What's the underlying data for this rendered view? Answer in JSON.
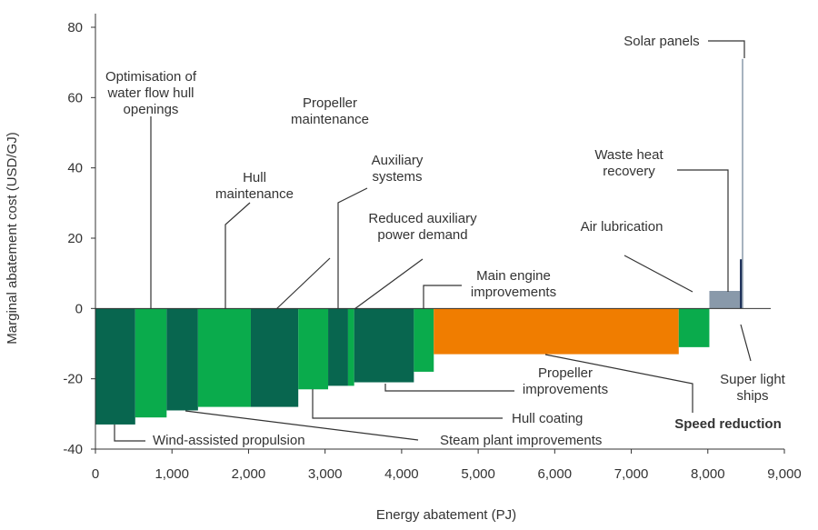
{
  "chart_data": {
    "type": "bar",
    "subtype": "marginal-abatement-cost-curve",
    "title": "",
    "xlabel": "Energy abatement (PJ)",
    "ylabel": "Marginal abatement cost (USD/GJ)",
    "xlim": [
      0,
      9000
    ],
    "ylim": [
      -40,
      85
    ],
    "x_ticks": [
      "0",
      "1,000",
      "2,000",
      "3,000",
      "4,000",
      "5,000",
      "6,000",
      "7,000",
      "8,000",
      "9,000"
    ],
    "y_ticks": [
      "-40",
      "-20",
      "0",
      "20",
      "40",
      "60",
      "80"
    ],
    "grid": false,
    "colors": {
      "dark_green": "#08664f",
      "light_green": "#0aab4c",
      "orange": "#f07d00",
      "grey": "#8999aa",
      "navy": "#0b1f4b",
      "axis": "#333333",
      "highlight_leader": "#f07d00"
    },
    "measures": [
      {
        "id": "wind",
        "label": "Wind-assisted propulsion",
        "x0": 0,
        "x1": 520,
        "value": -33,
        "color": "dark_green",
        "text_lines": [
          "Wind-assisted propulsion"
        ]
      },
      {
        "id": "hullflow",
        "label": "Optimisation of water flow hull openings",
        "x0": 520,
        "x1": 930,
        "value": -31,
        "color": "light_green",
        "text_lines": [
          "Optimisation of",
          "water flow hull",
          "openings"
        ]
      },
      {
        "id": "steam",
        "label": "Steam plant improvements",
        "x0": 930,
        "x1": 1340,
        "value": -29,
        "color": "dark_green",
        "text_lines": [
          "Steam plant improvements"
        ]
      },
      {
        "id": "hullmaint",
        "label": "Hull maintenance",
        "x0": 1340,
        "x1": 2030,
        "value": -28,
        "color": "light_green",
        "text_lines": [
          "Hull",
          "maintenance"
        ]
      },
      {
        "id": "propmaint",
        "label": "Propeller maintenance",
        "x0": 2030,
        "x1": 2650,
        "value": -28,
        "color": "dark_green",
        "text_lines": [
          "Propeller",
          "maintenance"
        ]
      },
      {
        "id": "hullcoat",
        "label": "Hull coating",
        "x0": 2650,
        "x1": 3040,
        "value": -23,
        "color": "light_green",
        "text_lines": [
          "Hull coating"
        ]
      },
      {
        "id": "aux",
        "label": "Auxiliary systems",
        "x0": 3040,
        "x1": 3300,
        "value": -22,
        "color": "dark_green",
        "text_lines": [
          "Auxiliary",
          "systems"
        ]
      },
      {
        "id": "redaux",
        "label": "Reduced auxiliary power demand",
        "x0": 3300,
        "x1": 3380,
        "value": -22,
        "color": "light_green",
        "text_lines": [
          "Reduced auxiliary",
          "power demand"
        ]
      },
      {
        "id": "propimp",
        "label": "Propeller improvements",
        "x0": 3380,
        "x1": 4160,
        "value": -21,
        "color": "dark_green",
        "text_lines": [
          "Propeller",
          "improvements"
        ]
      },
      {
        "id": "mainengine",
        "label": "Main engine improvements",
        "x0": 4160,
        "x1": 4420,
        "value": -18,
        "color": "light_green",
        "text_lines": [
          "Main engine",
          "improvements"
        ]
      },
      {
        "id": "speed",
        "label": "Speed reduction",
        "x0": 4420,
        "x1": 7620,
        "value": -13,
        "color": "orange",
        "text_lines": [
          "Speed reduction"
        ],
        "bold": true
      },
      {
        "id": "airlub",
        "label": "Air lubrication",
        "x0": 7620,
        "x1": 8020,
        "value": -11,
        "color": "light_green",
        "text_lines": [
          "Air lubrication"
        ]
      },
      {
        "id": "waste",
        "label": "Waste heat recovery",
        "x0": 8020,
        "x1": 8420,
        "value": 5,
        "color": "grey",
        "text_lines": [
          "Waste heat",
          "recovery"
        ]
      },
      {
        "id": "superlight",
        "label": "Super light ships",
        "x0": 8420,
        "x1": 8445,
        "value": 14,
        "color": "navy",
        "text_lines": [
          "Super light",
          "ships"
        ]
      },
      {
        "id": "solar",
        "label": "Solar panels",
        "x0": 8445,
        "x1": 8460,
        "value": 71,
        "color": "grey",
        "text_lines": [
          "Solar panels"
        ]
      }
    ]
  }
}
